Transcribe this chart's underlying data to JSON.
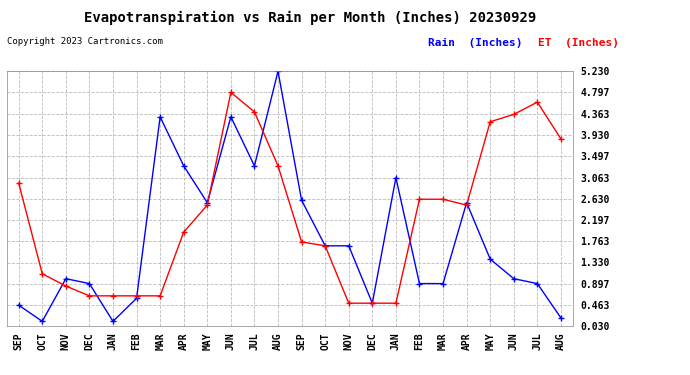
{
  "title": "Evapotranspiration vs Rain per Month (Inches) 20230929",
  "copyright": "Copyright 2023 Cartronics.com",
  "legend_rain": "Rain  (Inches)",
  "legend_et": "ET  (Inches)",
  "x_labels": [
    "SEP",
    "OCT",
    "NOV",
    "DEC",
    "JAN",
    "FEB",
    "MAR",
    "APR",
    "MAY",
    "JUN",
    "JUL",
    "AUG",
    "SEP",
    "OCT",
    "NOV",
    "DEC",
    "JAN",
    "FEB",
    "MAR",
    "APR",
    "MAY",
    "JUN",
    "JUL",
    "AUG"
  ],
  "rain_values": [
    0.46,
    0.13,
    1.0,
    0.9,
    0.13,
    0.6,
    4.3,
    3.3,
    2.55,
    4.3,
    3.3,
    5.23,
    2.6,
    1.67,
    1.67,
    0.5,
    3.06,
    0.9,
    0.9,
    2.55,
    1.4,
    1.0,
    0.9,
    0.2
  ],
  "et_values": [
    2.95,
    1.1,
    0.85,
    0.65,
    0.65,
    0.65,
    0.65,
    1.95,
    2.5,
    4.8,
    4.4,
    3.3,
    1.75,
    1.67,
    0.5,
    0.5,
    0.5,
    2.62,
    2.62,
    2.5,
    4.2,
    4.35,
    4.6,
    3.85
  ],
  "yticks": [
    0.03,
    0.463,
    0.897,
    1.33,
    1.763,
    2.197,
    2.63,
    3.063,
    3.497,
    3.93,
    4.363,
    4.797,
    5.23
  ],
  "ymin": 0.03,
  "ymax": 5.23,
  "rain_color": "#0000ff",
  "et_color": "#ff0000",
  "bg_color": "#ffffff",
  "grid_color": "#bbbbbb",
  "title_fontsize": 10,
  "copyright_fontsize": 6.5,
  "tick_fontsize": 7,
  "legend_fontsize": 8
}
